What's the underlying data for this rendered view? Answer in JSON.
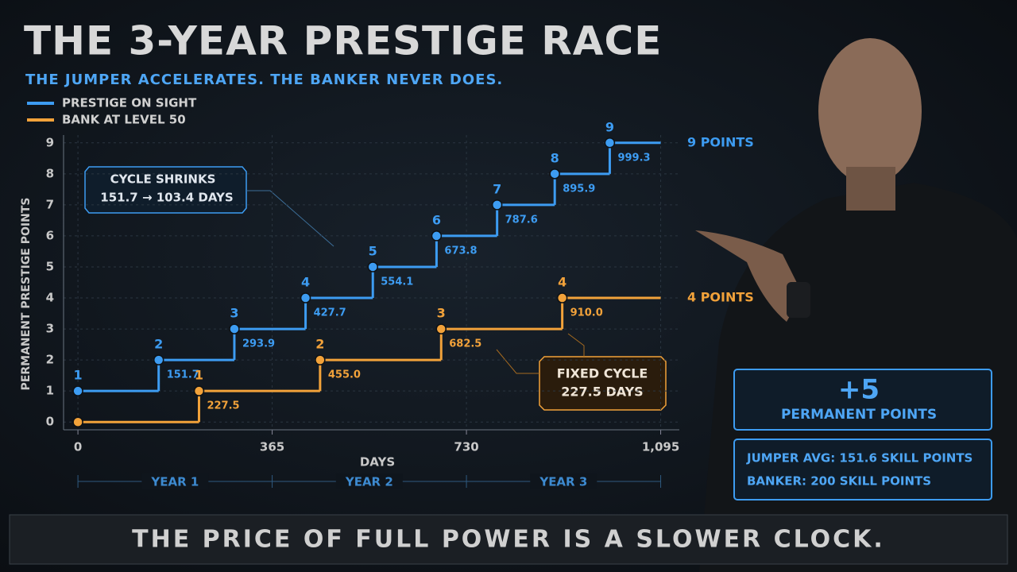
{
  "chart_data": {
    "type": "step",
    "title": "THE 3-YEAR PRESTIGE RACE",
    "subtitle": "THE JUMPER ACCELERATES. THE BANKER NEVER DOES.",
    "x_label": "DAYS",
    "y_label": "PERMANENT PRESTIGE POINTS",
    "xlim": [
      -27,
      1130
    ],
    "xticks": [
      0,
      365,
      730,
      {
        "value": 1095,
        "label": "1,095"
      }
    ],
    "ylim": [
      -0.25,
      9.25
    ],
    "yticks": [
      0,
      1,
      2,
      3,
      4,
      5,
      6,
      7,
      8,
      9
    ],
    "grid": true,
    "legend": "top-left",
    "series": [
      {
        "name": "PRESTIGE ON SIGHT",
        "color": "#3d9cf2",
        "x": [
          0,
          151.7,
          293.9,
          427.7,
          554.1,
          673.8,
          787.6,
          895.9,
          999.3
        ],
        "x_labels": [
          null,
          "151.7",
          "293.9",
          "427.7",
          "554.1",
          "673.8",
          "787.6",
          "895.9",
          "999.3"
        ],
        "values": [
          1,
          2,
          3,
          4,
          5,
          6,
          7,
          8,
          9
        ],
        "value_labels": [
          "1",
          "2",
          "3",
          "4",
          "5",
          "6",
          "7",
          "8",
          "9"
        ],
        "end_label": "9 POINTS"
      },
      {
        "name": "BANK AT LEVEL 50",
        "color": "#f2a23a",
        "x": [
          0,
          227.5,
          455.0,
          682.5,
          910.0
        ],
        "x_labels": [
          null,
          "227.5",
          "455.0",
          "682.5",
          "910.0"
        ],
        "values": [
          0,
          1,
          2,
          3,
          4
        ],
        "value_labels": [
          null,
          "1",
          "2",
          "3",
          "4"
        ],
        "end_label": "4 POINTS"
      }
    ],
    "years": [
      "YEAR 1",
      "YEAR 2",
      "YEAR 3"
    ],
    "annotations": {
      "cycle_shrinks": [
        "CYCLE SHRINKS",
        "151.7 → 103.4 DAYS"
      ],
      "fixed_cycle": [
        "FIXED CYCLE",
        "227.5 DAYS"
      ],
      "gain": "+5",
      "gain_caption": "PERMANENT POINTS",
      "jumper_avg": "JUMPER AVG:  151.6 SKILL POINTS",
      "banker": "BANKER:  200 SKILL POINTS"
    },
    "footer": "THE PRICE OF FULL POWER IS A SLOWER CLOCK."
  }
}
